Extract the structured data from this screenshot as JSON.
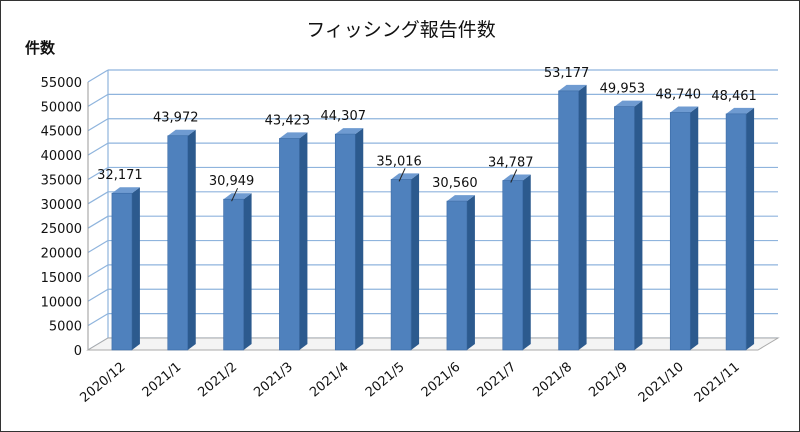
{
  "chart_data": {
    "type": "bar",
    "title": "フィッシング報告件数",
    "ylabel": "件数",
    "xlabel": "",
    "categories": [
      "2020/12",
      "2021/1",
      "2021/2",
      "2021/3",
      "2021/4",
      "2021/5",
      "2021/6",
      "2021/7",
      "2021/8",
      "2021/9",
      "2021/10",
      "2021/11"
    ],
    "values": [
      32171,
      43972,
      30949,
      43423,
      44307,
      35016,
      30560,
      34787,
      53177,
      49953,
      48740,
      48461
    ],
    "data_labels": [
      "32,171",
      "43,972",
      "30,949",
      "43,423",
      "44,307",
      "35,016",
      "30,560",
      "34,787",
      "53,177",
      "49,953",
      "48,740",
      "48,461"
    ],
    "ylim": [
      0,
      55000
    ],
    "yticks": [
      0,
      5000,
      10000,
      15000,
      20000,
      25000,
      30000,
      35000,
      40000,
      45000,
      50000,
      55000
    ],
    "grid": true,
    "legend": "none",
    "style": "3d-column",
    "colors": {
      "bar_front": "#4f81bd",
      "bar_side": "#2c5a8e",
      "bar_top": "#6f9bd1",
      "grid": "#8fb4dd",
      "wall": "#ffffff"
    }
  }
}
